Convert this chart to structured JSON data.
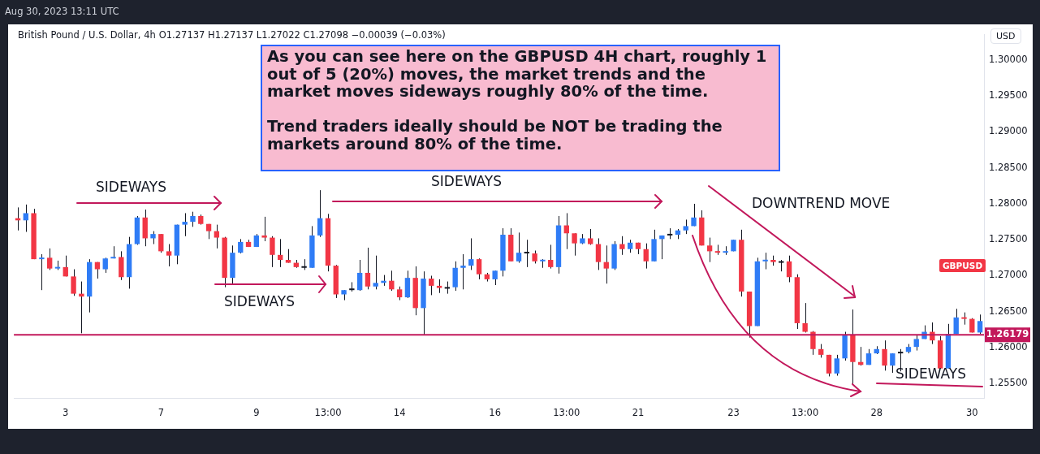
{
  "chart_data": {
    "type": "candlestick",
    "title": "British Pound / U.S. Dollar, 4h",
    "subtitle": "O1.27137 H1.27137 L1.27022 C1.27098 −0.00039 (−0.03%)",
    "annotations": [
      "Aug 30, 2023 13:11 UTC",
      "USD",
      "As you can see here on the GBPUSD 4H chart, roughly 1\nout of 5 (20%) moves, the market trends and the\nmarket moves sideways roughly 80% of the time.\n\nTrend traders ideally should be NOT be trading the\nmarkets around 80% of the time.",
      "SIDEWAYS",
      "SIDEWAYS",
      "SIDEWAYS",
      "DOWNTREND MOVE",
      "SIDEWAYS",
      "GBPUSD"
    ],
    "categories": [
      null,
      null,
      null,
      null,
      null,
      null,
      "3",
      null,
      null,
      null,
      null,
      null,
      null,
      null,
      null,
      null,
      null,
      null,
      "7",
      null,
      null,
      null,
      null,
      null,
      null,
      null,
      null,
      null,
      null,
      null,
      "9",
      null,
      null,
      null,
      null,
      null,
      null,
      null,
      null,
      "13:00",
      null,
      null,
      null,
      null,
      null,
      null,
      null,
      null,
      "14",
      null,
      null,
      null,
      null,
      null,
      null,
      null,
      null,
      null,
      null,
      null,
      "16",
      null,
      null,
      null,
      null,
      null,
      null,
      null,
      null,
      "13:00",
      null,
      null,
      null,
      null,
      null,
      null,
      null,
      null,
      "21",
      null,
      null,
      null,
      null,
      null,
      null,
      null,
      null,
      null,
      null,
      null,
      "23",
      null,
      null,
      null,
      null,
      null,
      null,
      null,
      null,
      "13:00",
      null,
      null,
      null,
      null,
      null,
      null,
      null,
      null,
      "28",
      null,
      null,
      null,
      null,
      null,
      null,
      null,
      null,
      null,
      null,
      null,
      "30",
      null
    ],
    "ohlc": [
      [
        1.278,
        1.2795,
        1.2763,
        1.2777
      ],
      [
        1.2777,
        1.2799,
        1.2761,
        1.2787
      ],
      [
        1.2787,
        1.2793,
        1.2723,
        1.2723
      ],
      [
        1.2723,
        1.273,
        1.268,
        1.2725
      ],
      [
        1.2725,
        1.2738,
        1.2708,
        1.271
      ],
      [
        1.271,
        1.2721,
        1.2708,
        1.2712
      ],
      [
        1.2712,
        1.2728,
        1.2699,
        1.2699
      ],
      [
        1.2699,
        1.2709,
        1.2672,
        1.2675
      ],
      [
        1.2675,
        1.2692,
        1.262,
        1.2671
      ],
      [
        1.2671,
        1.2723,
        1.2649,
        1.2719
      ],
      [
        1.2719,
        1.2719,
        1.2696,
        1.2709
      ],
      [
        1.2709,
        1.2725,
        1.2704,
        1.2724
      ],
      [
        1.2724,
        1.2741,
        1.2724,
        1.2726
      ],
      [
        1.2726,
        1.2734,
        1.2694,
        1.2698
      ],
      [
        1.2698,
        1.2754,
        1.2682,
        1.2744
      ],
      [
        1.2744,
        1.2783,
        1.2743,
        1.2781
      ],
      [
        1.2781,
        1.2792,
        1.2741,
        1.2752
      ],
      [
        1.2752,
        1.2762,
        1.2744,
        1.2758
      ],
      [
        1.2758,
        1.2758,
        1.2732,
        1.2734
      ],
      [
        1.2734,
        1.2744,
        1.2713,
        1.2728
      ],
      [
        1.2728,
        1.2771,
        1.2716,
        1.2771
      ],
      [
        1.2771,
        1.2787,
        1.2755,
        1.2775
      ],
      [
        1.2775,
        1.2789,
        1.2768,
        1.2783
      ],
      [
        1.2783,
        1.2785,
        1.2771,
        1.2772
      ],
      [
        1.2772,
        1.2772,
        1.2751,
        1.2762
      ],
      [
        1.2762,
        1.2771,
        1.2738,
        1.2753
      ],
      [
        1.2753,
        1.2754,
        1.2684,
        1.2697
      ],
      [
        1.2697,
        1.2742,
        1.2687,
        1.2732
      ],
      [
        1.2732,
        1.2751,
        1.2731,
        1.2747
      ],
      [
        1.2747,
        1.275,
        1.274,
        1.274
      ],
      [
        1.274,
        1.2758,
        1.274,
        1.2756
      ],
      [
        1.2756,
        1.2782,
        1.2748,
        1.2753
      ],
      [
        1.2753,
        1.2755,
        1.2712,
        1.2729
      ],
      [
        1.2729,
        1.2751,
        1.2712,
        1.2722
      ],
      [
        1.2722,
        1.2737,
        1.2718,
        1.2718
      ],
      [
        1.2718,
        1.2722,
        1.2711,
        1.2712
      ],
      [
        1.2712,
        1.2723,
        1.2708,
        1.2711
      ],
      [
        1.2711,
        1.2769,
        1.2711,
        1.2756
      ],
      [
        1.2756,
        1.2819,
        1.2754,
        1.278
      ],
      [
        1.278,
        1.2786,
        1.2706,
        1.2714
      ],
      [
        1.2714,
        1.2715,
        1.2669,
        1.2674
      ],
      [
        1.2674,
        1.268,
        1.2666,
        1.268
      ],
      [
        1.268,
        1.2691,
        1.2678,
        1.2681
      ],
      [
        1.268,
        1.2722,
        1.2679,
        1.2704
      ],
      [
        1.2704,
        1.2739,
        1.2681,
        1.2685
      ],
      [
        1.2685,
        1.2728,
        1.2681,
        1.269
      ],
      [
        1.269,
        1.2701,
        1.2686,
        1.2693
      ],
      [
        1.2693,
        1.2707,
        1.2679,
        1.2681
      ],
      [
        1.2681,
        1.2685,
        1.2666,
        1.267
      ],
      [
        1.267,
        1.2707,
        1.2669,
        1.2697
      ],
      [
        1.2697,
        1.2713,
        1.2645,
        1.2655
      ],
      [
        1.2655,
        1.2706,
        1.2617,
        1.2696
      ],
      [
        1.2696,
        1.27,
        1.2673,
        1.2686
      ],
      [
        1.2686,
        1.2695,
        1.2676,
        1.2683
      ],
      [
        1.2683,
        1.2692,
        1.2675,
        1.2682
      ],
      [
        1.2684,
        1.272,
        1.2679,
        1.2711
      ],
      [
        1.2711,
        1.273,
        1.2681,
        1.2714
      ],
      [
        1.2714,
        1.2752,
        1.2708,
        1.2723
      ],
      [
        1.2723,
        1.2724,
        1.2695,
        1.2702
      ],
      [
        1.2702,
        1.2704,
        1.2692,
        1.2695
      ],
      [
        1.2695,
        1.2707,
        1.2687,
        1.2707
      ],
      [
        1.2707,
        1.2766,
        1.2699,
        1.2757
      ],
      [
        1.2757,
        1.2766,
        1.272,
        1.272
      ],
      [
        1.272,
        1.276,
        1.2718,
        1.2732
      ],
      [
        1.2732,
        1.275,
        1.2712,
        1.2731
      ],
      [
        1.2731,
        1.2735,
        1.2717,
        1.272
      ],
      [
        1.272,
        1.2723,
        1.2711,
        1.2722
      ],
      [
        1.2722,
        1.2743,
        1.271,
        1.2712
      ],
      [
        1.2712,
        1.2783,
        1.2703,
        1.277
      ],
      [
        1.277,
        1.2787,
        1.2737,
        1.2759
      ],
      [
        1.2759,
        1.2759,
        1.2728,
        1.2745
      ],
      [
        1.2745,
        1.2758,
        1.2744,
        1.2752
      ],
      [
        1.2752,
        1.2765,
        1.2743,
        1.2744
      ],
      [
        1.2744,
        1.2752,
        1.2708,
        1.2719
      ],
      [
        1.2719,
        1.2742,
        1.2689,
        1.271
      ],
      [
        1.271,
        1.2748,
        1.2708,
        1.2744
      ],
      [
        1.2744,
        1.2755,
        1.2729,
        1.2737
      ],
      [
        1.2737,
        1.275,
        1.2732,
        1.2746
      ],
      [
        1.2746,
        1.2746,
        1.273,
        1.2737
      ],
      [
        1.2737,
        1.2745,
        1.271,
        1.272
      ],
      [
        1.272,
        1.2764,
        1.272,
        1.2751
      ],
      [
        1.2751,
        1.2756,
        1.2723,
        1.2756
      ],
      [
        1.2757,
        1.2766,
        1.2751,
        1.2756
      ],
      [
        1.2757,
        1.2765,
        1.2751,
        1.2763
      ],
      [
        1.2763,
        1.2778,
        1.2758,
        1.2769
      ],
      [
        1.2769,
        1.28,
        1.2769,
        1.2781
      ],
      [
        1.2781,
        1.2791,
        1.2742,
        1.2742
      ],
      [
        1.2742,
        1.2753,
        1.2719,
        1.2734
      ],
      [
        1.2734,
        1.2743,
        1.2729,
        1.2732
      ],
      [
        1.2732,
        1.2741,
        1.2729,
        1.2734
      ],
      [
        1.2734,
        1.275,
        1.2734,
        1.275
      ],
      [
        1.275,
        1.2764,
        1.2671,
        1.2678
      ],
      [
        1.2678,
        1.2678,
        1.2614,
        1.263
      ],
      [
        1.263,
        1.2725,
        1.263,
        1.272
      ],
      [
        1.272,
        1.2732,
        1.2709,
        1.2722
      ],
      [
        1.2722,
        1.2728,
        1.2714,
        1.2719
      ],
      [
        1.2719,
        1.2722,
        1.2706,
        1.2718
      ],
      [
        1.272,
        1.2728,
        1.2691,
        1.2698
      ],
      [
        1.2698,
        1.2702,
        1.2626,
        1.2634
      ],
      [
        1.2634,
        1.2662,
        1.2621,
        1.2622
      ],
      [
        1.2622,
        1.2623,
        1.259,
        1.2598
      ],
      [
        1.2598,
        1.2605,
        1.2586,
        1.259
      ],
      [
        1.259,
        1.259,
        1.256,
        1.2564
      ],
      [
        1.2564,
        1.259,
        1.2561,
        1.2585
      ],
      [
        1.2585,
        1.2622,
        1.2582,
        1.2618
      ],
      [
        1.2618,
        1.2653,
        1.2549,
        1.258
      ],
      [
        1.258,
        1.2601,
        1.2575,
        1.2576
      ],
      [
        1.2576,
        1.2598,
        1.2576,
        1.2592
      ],
      [
        1.2592,
        1.2602,
        1.2591,
        1.2598
      ],
      [
        1.2598,
        1.261,
        1.2568,
        1.2575
      ],
      [
        1.2575,
        1.2592,
        1.2565,
        1.2592
      ],
      [
        1.2594,
        1.2598,
        1.2567,
        1.2592
      ],
      [
        1.2594,
        1.2605,
        1.2592,
        1.2601
      ],
      [
        1.2601,
        1.2618,
        1.2596,
        1.2612
      ],
      [
        1.2612,
        1.2631,
        1.2612,
        1.2622
      ],
      [
        1.2622,
        1.2635,
        1.2605,
        1.261
      ],
      [
        1.261,
        1.2616,
        1.2571,
        1.2571
      ],
      [
        1.2571,
        1.2633,
        1.2571,
        1.2619
      ],
      [
        1.2619,
        1.2654,
        1.2619,
        1.2642
      ],
      [
        1.2642,
        1.2649,
        1.2632,
        1.264
      ],
      [
        1.264,
        1.2641,
        1.2621,
        1.2621
      ],
      [
        1.2621,
        1.2646,
        1.2619,
        1.2637
      ]
    ],
    "colors": [
      "#f23645",
      "#2f7cf6",
      "#f23645",
      "#2f7cf6",
      "#f23645",
      "#2f7cf6",
      "#f23645",
      "#f23645",
      "#f23645",
      "#2f7cf6",
      "#f23645",
      "#2f7cf6",
      "#2f7cf6",
      "#f23645",
      "#2f7cf6",
      "#2f7cf6",
      "#f23645",
      "#2f7cf6",
      "#f23645",
      "#f23645",
      "#2f7cf6",
      "#2f7cf6",
      "#2f7cf6",
      "#f23645",
      "#f23645",
      "#f23645",
      "#f23645",
      "#2f7cf6",
      "#2f7cf6",
      "#f23645",
      "#2f7cf6",
      "#f23645",
      "#f23645",
      "#f23645",
      "#f23645",
      "#f23645",
      "#131722",
      "#2f7cf6",
      "#2f7cf6",
      "#f23645",
      "#f23645",
      "#2f7cf6",
      "#131722",
      "#2f7cf6",
      "#f23645",
      "#2f7cf6",
      "#2f7cf6",
      "#f23645",
      "#f23645",
      "#2f7cf6",
      "#f23645",
      "#2f7cf6",
      "#f23645",
      "#f23645",
      "#131722",
      "#2f7cf6",
      "#2f7cf6",
      "#2f7cf6",
      "#f23645",
      "#f23645",
      "#2f7cf6",
      "#2f7cf6",
      "#f23645",
      "#2f7cf6",
      "#131722",
      "#f23645",
      "#2f7cf6",
      "#f23645",
      "#2f7cf6",
      "#f23645",
      "#f23645",
      "#2f7cf6",
      "#f23645",
      "#f23645",
      "#f23645",
      "#2f7cf6",
      "#f23645",
      "#2f7cf6",
      "#f23645",
      "#f23645",
      "#2f7cf6",
      "#2f7cf6",
      "#131722",
      "#2f7cf6",
      "#2f7cf6",
      "#2f7cf6",
      "#f23645",
      "#f23645",
      "#f23645",
      "#2f7cf6",
      "#2f7cf6",
      "#f23645",
      "#f23645",
      "#2f7cf6",
      "#2f7cf6",
      "#f23645",
      "#131722",
      "#f23645",
      "#f23645",
      "#f23645",
      "#f23645",
      "#f23645",
      "#f23645",
      "#2f7cf6",
      "#2f7cf6",
      "#f23645",
      "#f23645",
      "#2f7cf6",
      "#2f7cf6",
      "#f23645",
      "#2f7cf6",
      "#131722",
      "#2f7cf6",
      "#2f7cf6",
      "#2f7cf6",
      "#f23645",
      "#f23645",
      "#2f7cf6",
      "#2f7cf6",
      "#f23645",
      "#f23645",
      "#2f7cf6"
    ],
    "ylim": [
      1.253,
      1.3035
    ],
    "yticks": [
      {
        "value": 1.255,
        "label": "1.25500"
      },
      {
        "value": 1.26,
        "label": "1.26000"
      },
      {
        "value": 1.265,
        "label": "1.26500"
      },
      {
        "value": 1.27,
        "label": "1.27000"
      },
      {
        "value": 1.275,
        "label": "1.27500"
      },
      {
        "value": 1.28,
        "label": "1.28000"
      },
      {
        "value": 1.285,
        "label": "1.28500"
      },
      {
        "value": 1.29,
        "label": "1.29000"
      },
      {
        "value": 1.295,
        "label": "1.29500"
      },
      {
        "value": 1.3,
        "label": "1.30000"
      }
    ],
    "ref_lines": [
      {
        "axis": "y",
        "value": 1.26179,
        "label": "1.26179",
        "color": "#c2185b"
      }
    ]
  }
}
